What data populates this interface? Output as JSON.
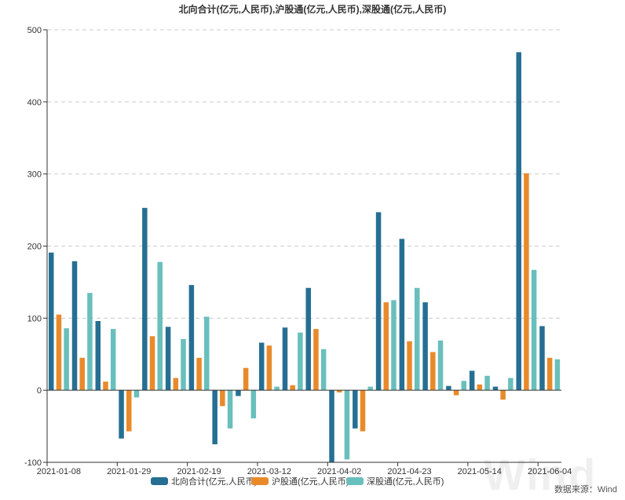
{
  "colors": {
    "north": "#266f93",
    "sh": "#e98a2a",
    "sz": "#69bfbc",
    "grid": "#cccccc",
    "axis": "#333333"
  },
  "source": "数据来源：Wind",
  "watermark": "Wind",
  "chart_data": {
    "type": "bar",
    "title": "北向合计(亿元,人民币),沪股通(亿元,人民币),深股通(亿元,人民币)",
    "xlabel": "",
    "ylabel": "",
    "ylim": [
      -100,
      500
    ],
    "yticks": [
      -100,
      0,
      100,
      200,
      300,
      400,
      500
    ],
    "grid": true,
    "legend_position": "bottom",
    "categories": [
      "2021-01-08",
      "2021-01-15",
      "2021-01-22",
      "2021-01-29",
      "2021-02-05",
      "2021-02-12",
      "2021-02-19",
      "2021-02-26",
      "2021-03-05",
      "2021-03-12",
      "2021-03-19",
      "2021-03-26",
      "2021-04-02",
      "2021-04-09",
      "2021-04-16",
      "2021-04-23",
      "2021-04-30",
      "2021-05-07",
      "2021-05-14",
      "2021-05-21",
      "2021-05-28",
      "2021-06-04"
    ],
    "tick_labels": [
      "2021-01-08",
      "2021-01-29",
      "2021-02-19",
      "2021-03-12",
      "2021-04-02",
      "2021-04-23",
      "2021-05-14",
      "2021-06-04"
    ],
    "series": [
      {
        "name": "北向合计(亿元,人民币)",
        "color_key": "north",
        "values": [
          191,
          179,
          96,
          -67,
          253,
          88,
          146,
          -75,
          -8,
          66,
          87,
          142,
          -100,
          -53,
          247,
          210,
          122,
          6,
          27,
          5,
          469,
          89
        ]
      },
      {
        "name": "沪股通(亿元,人民币)",
        "color_key": "sh",
        "values": [
          105,
          45,
          12,
          -57,
          75,
          17,
          45,
          -22,
          31,
          62,
          7,
          85,
          -3,
          -57,
          122,
          68,
          53,
          -7,
          8,
          -13,
          301,
          45
        ]
      },
      {
        "name": "深股通(亿元,人民币)",
        "color_key": "sz",
        "values": [
          86,
          135,
          85,
          -10,
          178,
          71,
          102,
          -53,
          -39,
          5,
          80,
          57,
          -96,
          5,
          125,
          142,
          69,
          13,
          20,
          17,
          167,
          43
        ]
      }
    ]
  }
}
